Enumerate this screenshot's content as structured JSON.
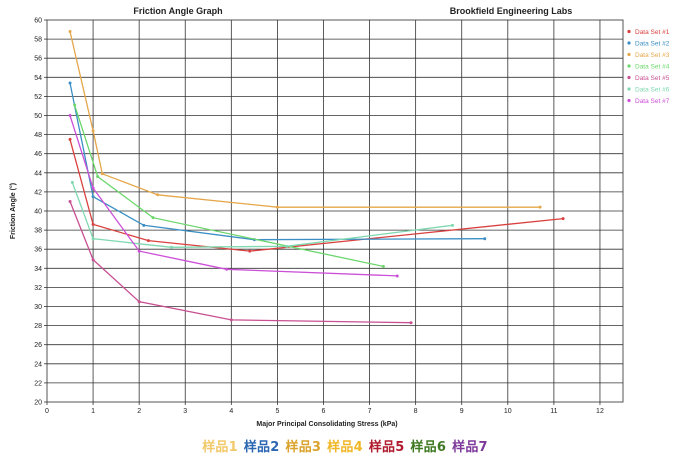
{
  "chart_data": {
    "type": "line",
    "title": "Friction Angle Graph",
    "subtitle": "Brookfield Engineering Labs",
    "xlabel": "Major Principal Consolidating Stress (kPa)",
    "ylabel": "Friction Angle (°)",
    "xlim": [
      0,
      12.5
    ],
    "ylim": [
      20,
      60
    ],
    "x_ticks": [
      0,
      1,
      2,
      3,
      4,
      5,
      6,
      7,
      8,
      9,
      10,
      11,
      12
    ],
    "y_ticks": [
      20,
      22,
      24,
      26,
      28,
      30,
      32,
      34,
      36,
      38,
      40,
      42,
      44,
      46,
      48,
      50,
      52,
      54,
      56,
      58,
      60
    ],
    "grid": true,
    "legend_position": "right",
    "series": [
      {
        "name": "Data Set #1",
        "color": "#d9413f",
        "points": [
          [
            0.5,
            47.5
          ],
          [
            1.0,
            38.6
          ],
          [
            2.2,
            36.9
          ],
          [
            4.4,
            35.8
          ],
          [
            11.2,
            39.2
          ]
        ]
      },
      {
        "name": "Data Set #2",
        "color": "#3b8fc4",
        "points": [
          [
            0.5,
            53.4
          ],
          [
            1.0,
            41.5
          ],
          [
            2.1,
            38.5
          ],
          [
            4.5,
            37.0
          ],
          [
            9.5,
            37.1
          ]
        ]
      },
      {
        "name": "Data Set #3",
        "color": "#e5a74a",
        "points": [
          [
            0.5,
            58.8
          ],
          [
            1.0,
            48.4
          ],
          [
            1.2,
            43.9
          ],
          [
            2.4,
            41.7
          ],
          [
            5.0,
            40.4
          ],
          [
            10.7,
            40.4
          ]
        ]
      },
      {
        "name": "Data Set #4",
        "color": "#6bd66b",
        "points": [
          [
            0.6,
            51.1
          ],
          [
            1.1,
            43.6
          ],
          [
            2.3,
            39.3
          ],
          [
            7.3,
            34.2
          ]
        ]
      },
      {
        "name": "Data Set #5",
        "color": "#c84f91",
        "points": [
          [
            0.5,
            41.0
          ],
          [
            1.0,
            34.9
          ],
          [
            2.0,
            30.5
          ],
          [
            4.0,
            28.6
          ],
          [
            7.9,
            28.3
          ]
        ]
      },
      {
        "name": "Data Set #6",
        "color": "#7fd8b0",
        "points": [
          [
            0.55,
            43.0
          ],
          [
            1.0,
            37.1
          ],
          [
            2.7,
            36.2
          ],
          [
            5.2,
            36.3
          ],
          [
            8.8,
            38.5
          ]
        ]
      },
      {
        "name": "Data Set #7",
        "color": "#cc4fd8",
        "points": [
          [
            0.5,
            50.0
          ],
          [
            1.0,
            42.4
          ],
          [
            2.0,
            35.8
          ],
          [
            3.9,
            33.9
          ],
          [
            7.6,
            33.2
          ]
        ]
      }
    ]
  },
  "captions": [
    {
      "text": "样品1",
      "color": "#f2c96a"
    },
    {
      "text": "样品2",
      "color": "#2b67b0"
    },
    {
      "text": "样品3",
      "color": "#d9a32c"
    },
    {
      "text": "样品4",
      "color": "#f0b829"
    },
    {
      "text": "样品5",
      "color": "#b01c2e"
    },
    {
      "text": "样品6",
      "color": "#3f7a22"
    },
    {
      "text": "样品7",
      "color": "#7d3a9a"
    }
  ]
}
